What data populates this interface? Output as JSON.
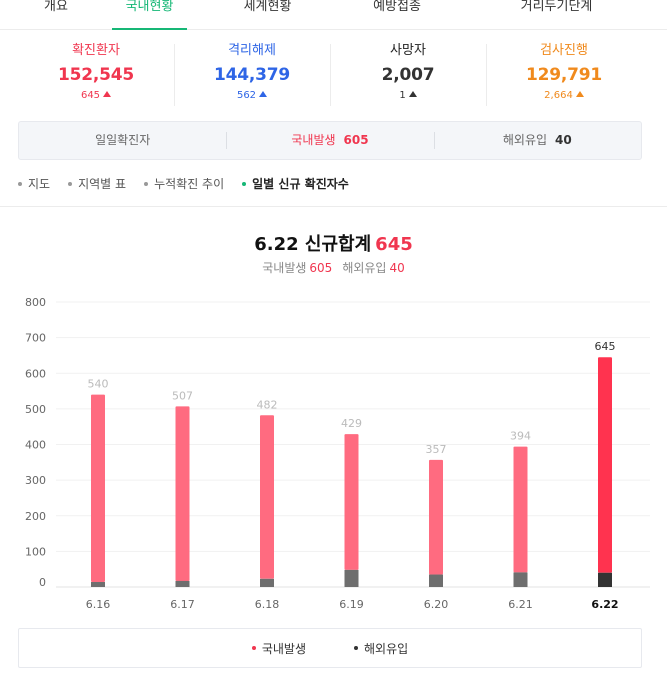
{
  "tabs": [
    {
      "label": "개요",
      "active": false
    },
    {
      "label": "국내현황",
      "active": true
    },
    {
      "label": "세계현황",
      "active": false
    },
    {
      "label": "예방접종",
      "active": false
    },
    {
      "label": "거리두기단계",
      "active": false
    }
  ],
  "stats": [
    {
      "label": "확진환자",
      "value": "152,545",
      "delta": "645",
      "color": "#f0364f"
    },
    {
      "label": "격리해제",
      "value": "144,379",
      "delta": "562",
      "color": "#2e65e6"
    },
    {
      "label": "사망자",
      "value": "2,007",
      "delta": "1",
      "color": "#333333"
    },
    {
      "label": "검사진행",
      "value": "129,791",
      "delta": "2,664",
      "color": "#f08a1d"
    }
  ],
  "segment": {
    "daily": "일일확진자",
    "domestic_label": "국내발생",
    "domestic_count": "605",
    "overseas_label": "해외유입",
    "overseas_count": "40"
  },
  "subnav": [
    {
      "label": "지도",
      "active": false
    },
    {
      "label": "지역별 표",
      "active": false
    },
    {
      "label": "누적확진 추이",
      "active": false
    },
    {
      "label": "일별 신규 확진자수",
      "active": true
    }
  ],
  "chart_header": {
    "title": "6.22 신규합계",
    "total": "645",
    "domestic_label": "국내발생",
    "domestic_value": "605",
    "overseas_label": "해외유입",
    "overseas_value": "40"
  },
  "chart_data": {
    "type": "bar",
    "stacked": true,
    "categories": [
      "6.16",
      "6.17",
      "6.18",
      "6.19",
      "6.20",
      "6.21",
      "6.22"
    ],
    "totals": [
      540,
      507,
      482,
      429,
      357,
      394,
      645
    ],
    "series": [
      {
        "name": "국내발생",
        "values": [
          526,
          490,
          459,
          381,
          322,
          353,
          605
        ],
        "color": "#ff6b80",
        "highlight_color": "#ff334f"
      },
      {
        "name": "해외유입",
        "values": [
          14,
          17,
          23,
          48,
          35,
          41,
          40
        ],
        "color": "#6e6e6e",
        "highlight_color": "#333333"
      }
    ],
    "highlight_index": 6,
    "ylim": [
      0,
      800
    ],
    "yticks": [
      0,
      100,
      200,
      300,
      400,
      500,
      600,
      700,
      800
    ],
    "grid": true,
    "legend": "bottom"
  },
  "legend": [
    {
      "label": "국내발생",
      "color": "#f0364f"
    },
    {
      "label": "해외유입",
      "color": "#333333"
    }
  ]
}
